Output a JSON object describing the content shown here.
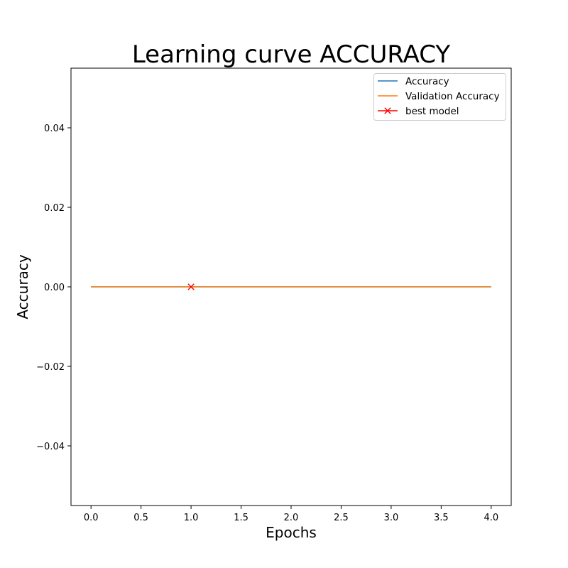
{
  "chart_data": {
    "type": "line",
    "title": "Learning curve ACCURACY",
    "xlabel": "Epochs",
    "ylabel": "Accuracy",
    "xlim": [
      -0.2,
      4.2
    ],
    "ylim": [
      -0.055,
      0.055
    ],
    "x_ticks": [
      0.0,
      0.5,
      1.0,
      1.5,
      2.0,
      2.5,
      3.0,
      3.5,
      4.0
    ],
    "x_tick_labels": [
      "0.0",
      "0.5",
      "1.0",
      "1.5",
      "2.0",
      "2.5",
      "3.0",
      "3.5",
      "4.0"
    ],
    "y_ticks": [
      -0.04,
      -0.02,
      0.0,
      0.02,
      0.04
    ],
    "y_tick_labels": [
      "−0.04",
      "−0.02",
      "0.00",
      "0.02",
      "0.04"
    ],
    "grid": false,
    "legend_position": "top-right",
    "series": [
      {
        "name": "Accuracy",
        "color": "#1f77b4",
        "x": [
          0,
          1,
          2,
          3,
          4
        ],
        "y": [
          0,
          0,
          0,
          0,
          0
        ]
      },
      {
        "name": "Validation Accuracy",
        "color": "#ff7f0e",
        "x": [
          0,
          1,
          2,
          3,
          4
        ],
        "y": [
          0,
          0,
          0,
          0,
          0
        ]
      }
    ],
    "markers": [
      {
        "name": "best model",
        "color": "#ff0000",
        "symbol": "x",
        "x": 1,
        "y": 0
      }
    ]
  }
}
